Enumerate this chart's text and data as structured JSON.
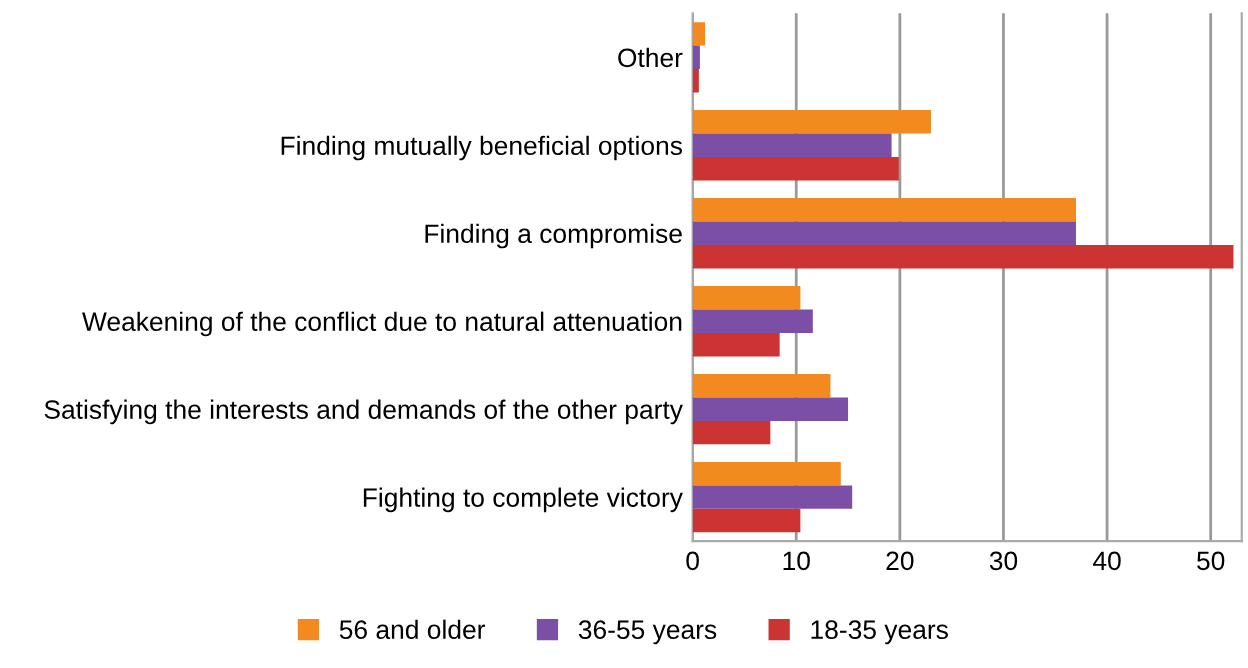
{
  "chart_data": {
    "type": "bar",
    "orientation": "horizontal",
    "categories": [
      "Other",
      "Finding mutually beneficial options",
      "Finding a compromise",
      "Weakening of the conflict due to natural attenuation",
      "Satisfying the interests and demands of the other party",
      "Fighting to complete victory"
    ],
    "series": [
      {
        "name": "56 and older",
        "color": "#f28a1f",
        "values": [
          1.2,
          23,
          37,
          10.4,
          13.3,
          14.3
        ]
      },
      {
        "name": "36-55 years",
        "color": "#7b4fa6",
        "values": [
          0.7,
          19.2,
          37,
          11.6,
          15,
          15.4
        ]
      },
      {
        "name": "18-35 years",
        "color": "#cc3333",
        "values": [
          0.6,
          19.9,
          52.2,
          8.4,
          7.5,
          10.4
        ]
      }
    ],
    "xlim": [
      0,
      53
    ],
    "xticks": [
      0,
      10,
      20,
      30,
      40,
      50
    ],
    "grid": "x",
    "legend": "bottom"
  }
}
